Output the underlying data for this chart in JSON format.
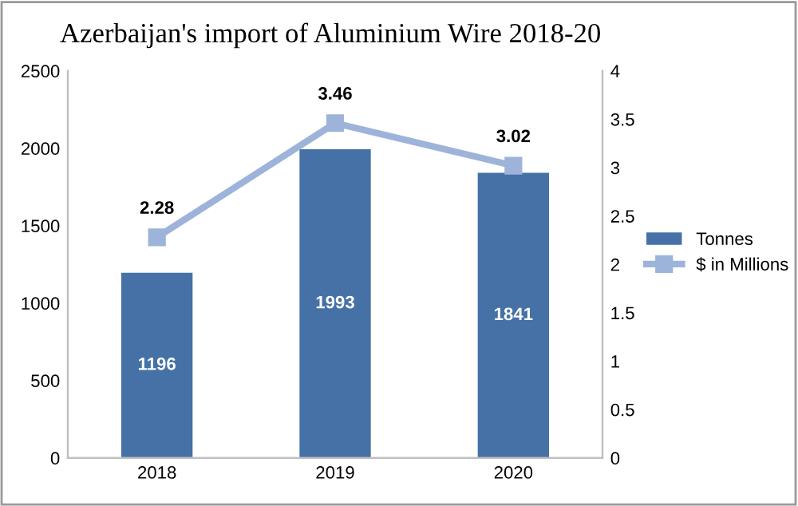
{
  "chart_data": {
    "type": "bar",
    "title": "Azerbaijan's import of Aluminium Wire 2018-20",
    "categories": [
      "2018",
      "2019",
      "2020"
    ],
    "series": [
      {
        "name": "Tonnes",
        "color": "#4571a7",
        "values": [
          1196,
          1993,
          1841
        ]
      },
      {
        "name": "$ in Millions",
        "type": "line",
        "axis": "y2",
        "color": "#9db3d9",
        "marker": "square",
        "values": [
          2.28,
          3.46,
          3.02
        ]
      }
    ],
    "ylim": [
      0,
      2500
    ],
    "yticks": [
      0,
      500,
      1000,
      1500,
      2000,
      2500
    ],
    "y2lim": [
      0,
      4
    ],
    "y2ticks": [
      0,
      0.5,
      1,
      1.5,
      2,
      2.5,
      3,
      3.5,
      4
    ],
    "data_labels": true,
    "legend": "right",
    "grid": false
  }
}
